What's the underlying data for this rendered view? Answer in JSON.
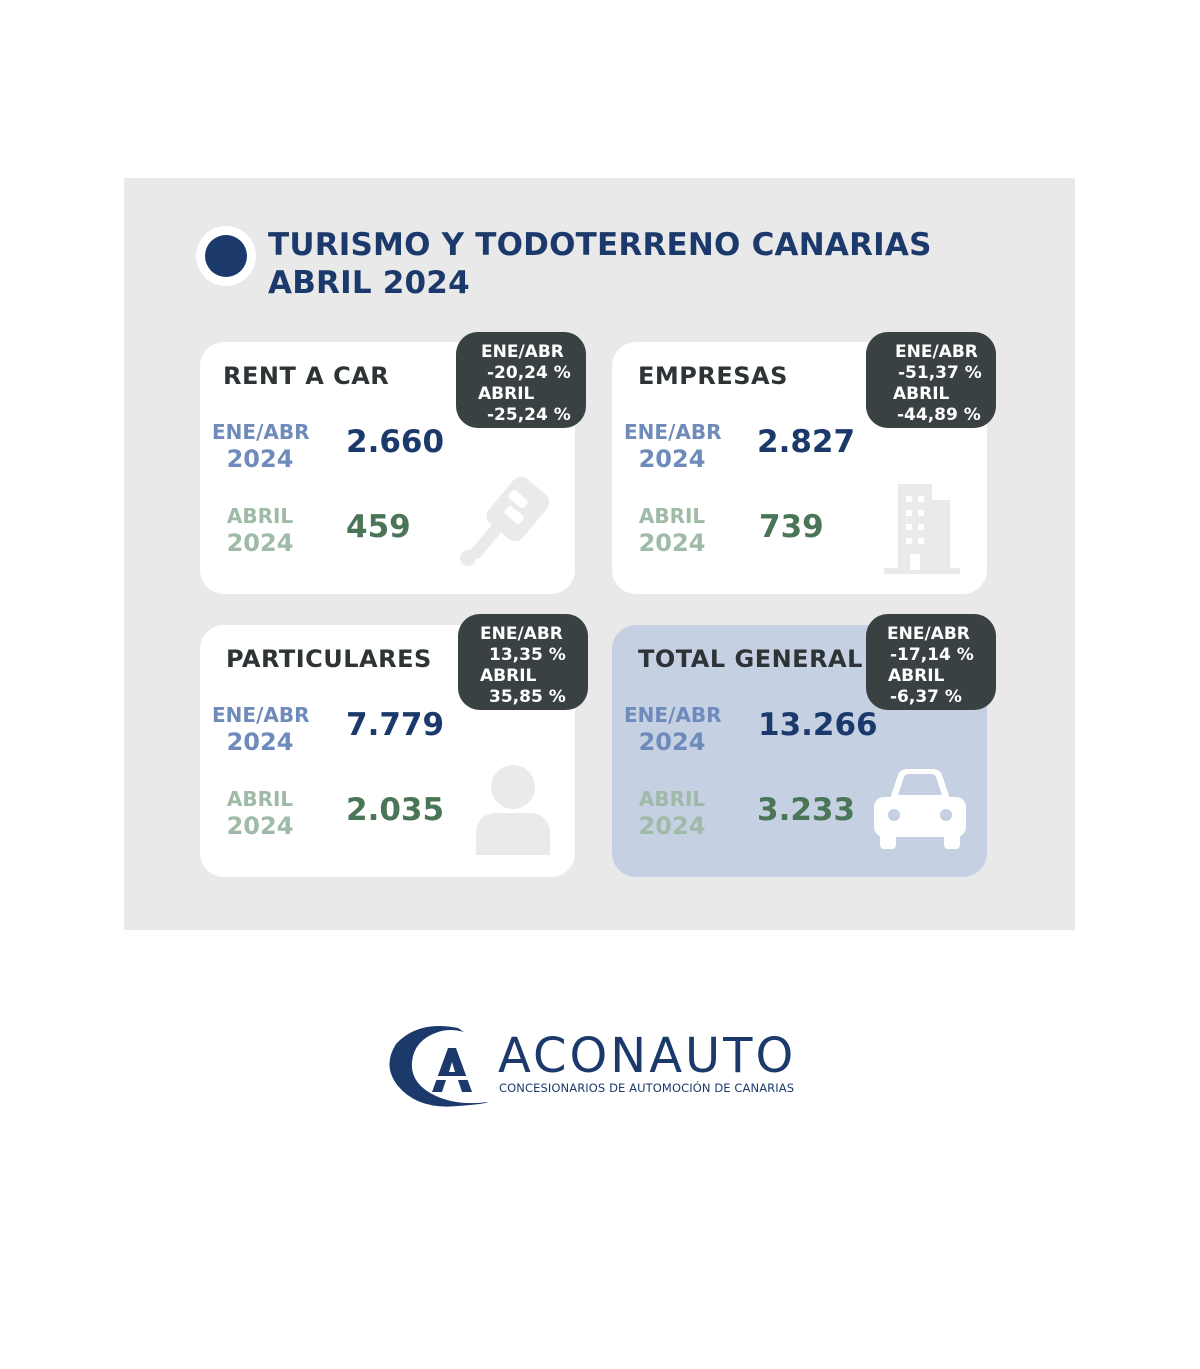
{
  "header": {
    "title_line1": "TURISMO Y TODOTERRENO CANARIAS",
    "title_line2": "ABRIL 2024"
  },
  "cards": {
    "rent_a_car": {
      "title": "RENT A CAR",
      "ytd_label": "ENE/ABR",
      "ytd_year": "2024",
      "ytd_value": "2.660",
      "month_label": "ABRIL",
      "month_year": "2024",
      "month_value": "459",
      "badge": {
        "ytd_label": "ENE/ABR",
        "ytd_change": "-20,24 %",
        "month_label": "ABRIL",
        "month_change": "-25,24 %"
      },
      "icon": "car-key-icon"
    },
    "empresas": {
      "title": "EMPRESAS",
      "ytd_label": "ENE/ABR",
      "ytd_year": "2024",
      "ytd_value": "2.827",
      "month_label": "ABRIL",
      "month_year": "2024",
      "month_value": "739",
      "badge": {
        "ytd_label": "ENE/ABR",
        "ytd_change": "-51,37 %",
        "month_label": "ABRIL",
        "month_change": "-44,89 %"
      },
      "icon": "office-building-icon"
    },
    "particulares": {
      "title": "PARTICULARES",
      "ytd_label": "ENE/ABR",
      "ytd_year": "2024",
      "ytd_value": "7.779",
      "month_label": "ABRIL",
      "month_year": "2024",
      "month_value": "2.035",
      "badge": {
        "ytd_label": "ENE/ABR",
        "ytd_change": "13,35 %",
        "month_label": "ABRIL",
        "month_change": "35,85 %"
      },
      "icon": "person-icon"
    },
    "total_general": {
      "title": "TOTAL GENERAL",
      "ytd_label": "ENE/ABR",
      "ytd_year": "2024",
      "ytd_value": "13.266",
      "month_label": "ABRIL",
      "month_year": "2024",
      "month_value": "3.233",
      "badge": {
        "ytd_label": "ENE/ABR",
        "ytd_change": "-17,14 %",
        "month_label": "ABRIL",
        "month_change": "-6,37 %"
      },
      "icon": "car-front-icon"
    }
  },
  "logo": {
    "name": "ACONAUTO",
    "tagline": "CONCESIONARIOS DE AUTOMOCIÓN DE CANARIAS"
  },
  "colors": {
    "navy": "#1b3a6b",
    "muted_blue": "#6f8bbb",
    "green": "#4a7557",
    "muted_green": "#9fbaa6",
    "badge_bg": "#394143",
    "panel_bg": "#e9e9ea",
    "total_card_bg": "#c5d0e3"
  }
}
